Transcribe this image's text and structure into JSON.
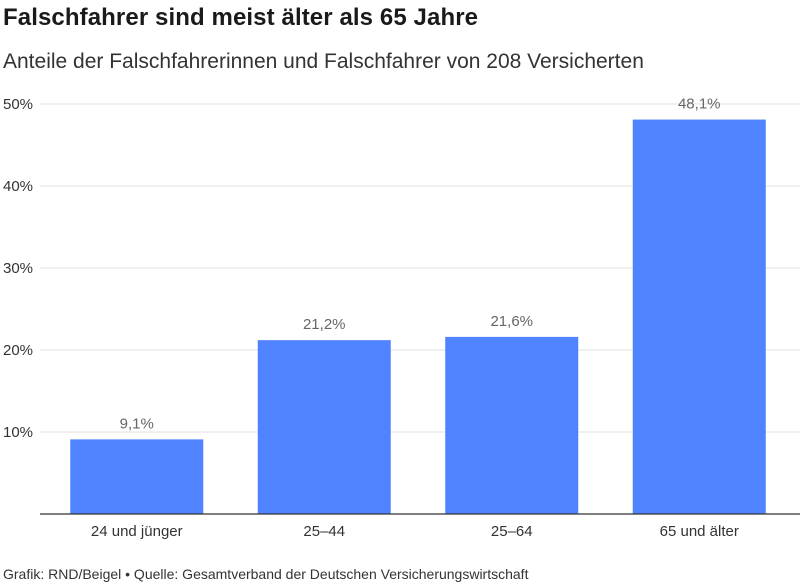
{
  "title": "Falschfahrer sind meist älter als 65 Jahre",
  "subtitle": "Anteile der Falschfahrerinnen und Falschfahrer von 208 Versicherten",
  "footer": "Grafik: RND/Beigel • Quelle: Gesamtverband der Deutschen Versicherungswirtschaft",
  "chart_data": {
    "type": "bar",
    "categories": [
      "24 und jünger",
      "25–44",
      "25–64",
      "65 und älter"
    ],
    "values": [
      9.1,
      21.2,
      21.6,
      48.1
    ],
    "value_labels": [
      "9,1%",
      "21,2%",
      "21,6%",
      "48,1%"
    ],
    "y_ticks": [
      10,
      20,
      30,
      40,
      50
    ],
    "y_tick_labels": [
      "10%",
      "20%",
      "30%",
      "40%",
      "50%"
    ],
    "ylim": [
      0,
      50
    ],
    "grid": true,
    "bar_color": "#4f83ff"
  }
}
